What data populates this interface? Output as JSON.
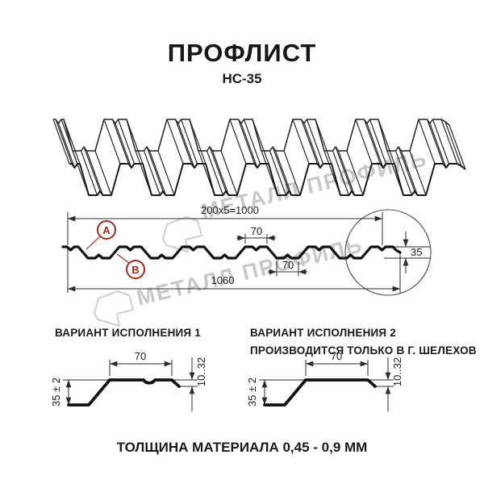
{
  "page": {
    "title": "ПРОФЛИСТ",
    "subtitle": "НС-35",
    "footer": "ТОЛЩИНА МАТЕРИАЛА 0,45 - 0,9 ММ"
  },
  "watermark": {
    "text": "МЕТАЛЛ ПРОФИЛЬ"
  },
  "cross_section": {
    "dims": {
      "top_total": "200x5=1000",
      "flange_top": "70",
      "flange_bottom": "70",
      "overall": "1060",
      "height": "35"
    },
    "markers": {
      "a": "A",
      "b": "B"
    }
  },
  "variant1": {
    "title": "ВАРИАНТ ИСПОЛНЕНИЯ 1",
    "dims": {
      "flange": "70",
      "height": "35 ± 2",
      "edge": "10..32"
    }
  },
  "variant2": {
    "title": "ВАРИАНТ ИСПОЛНЕНИЯ 2",
    "subtitle": "ПРОИЗВОДИТСЯ ТОЛЬКО В Г. ШЕЛЕХОВ",
    "dims": {
      "flange": "70",
      "height": "35 ± 2",
      "edge": "10..32"
    }
  }
}
